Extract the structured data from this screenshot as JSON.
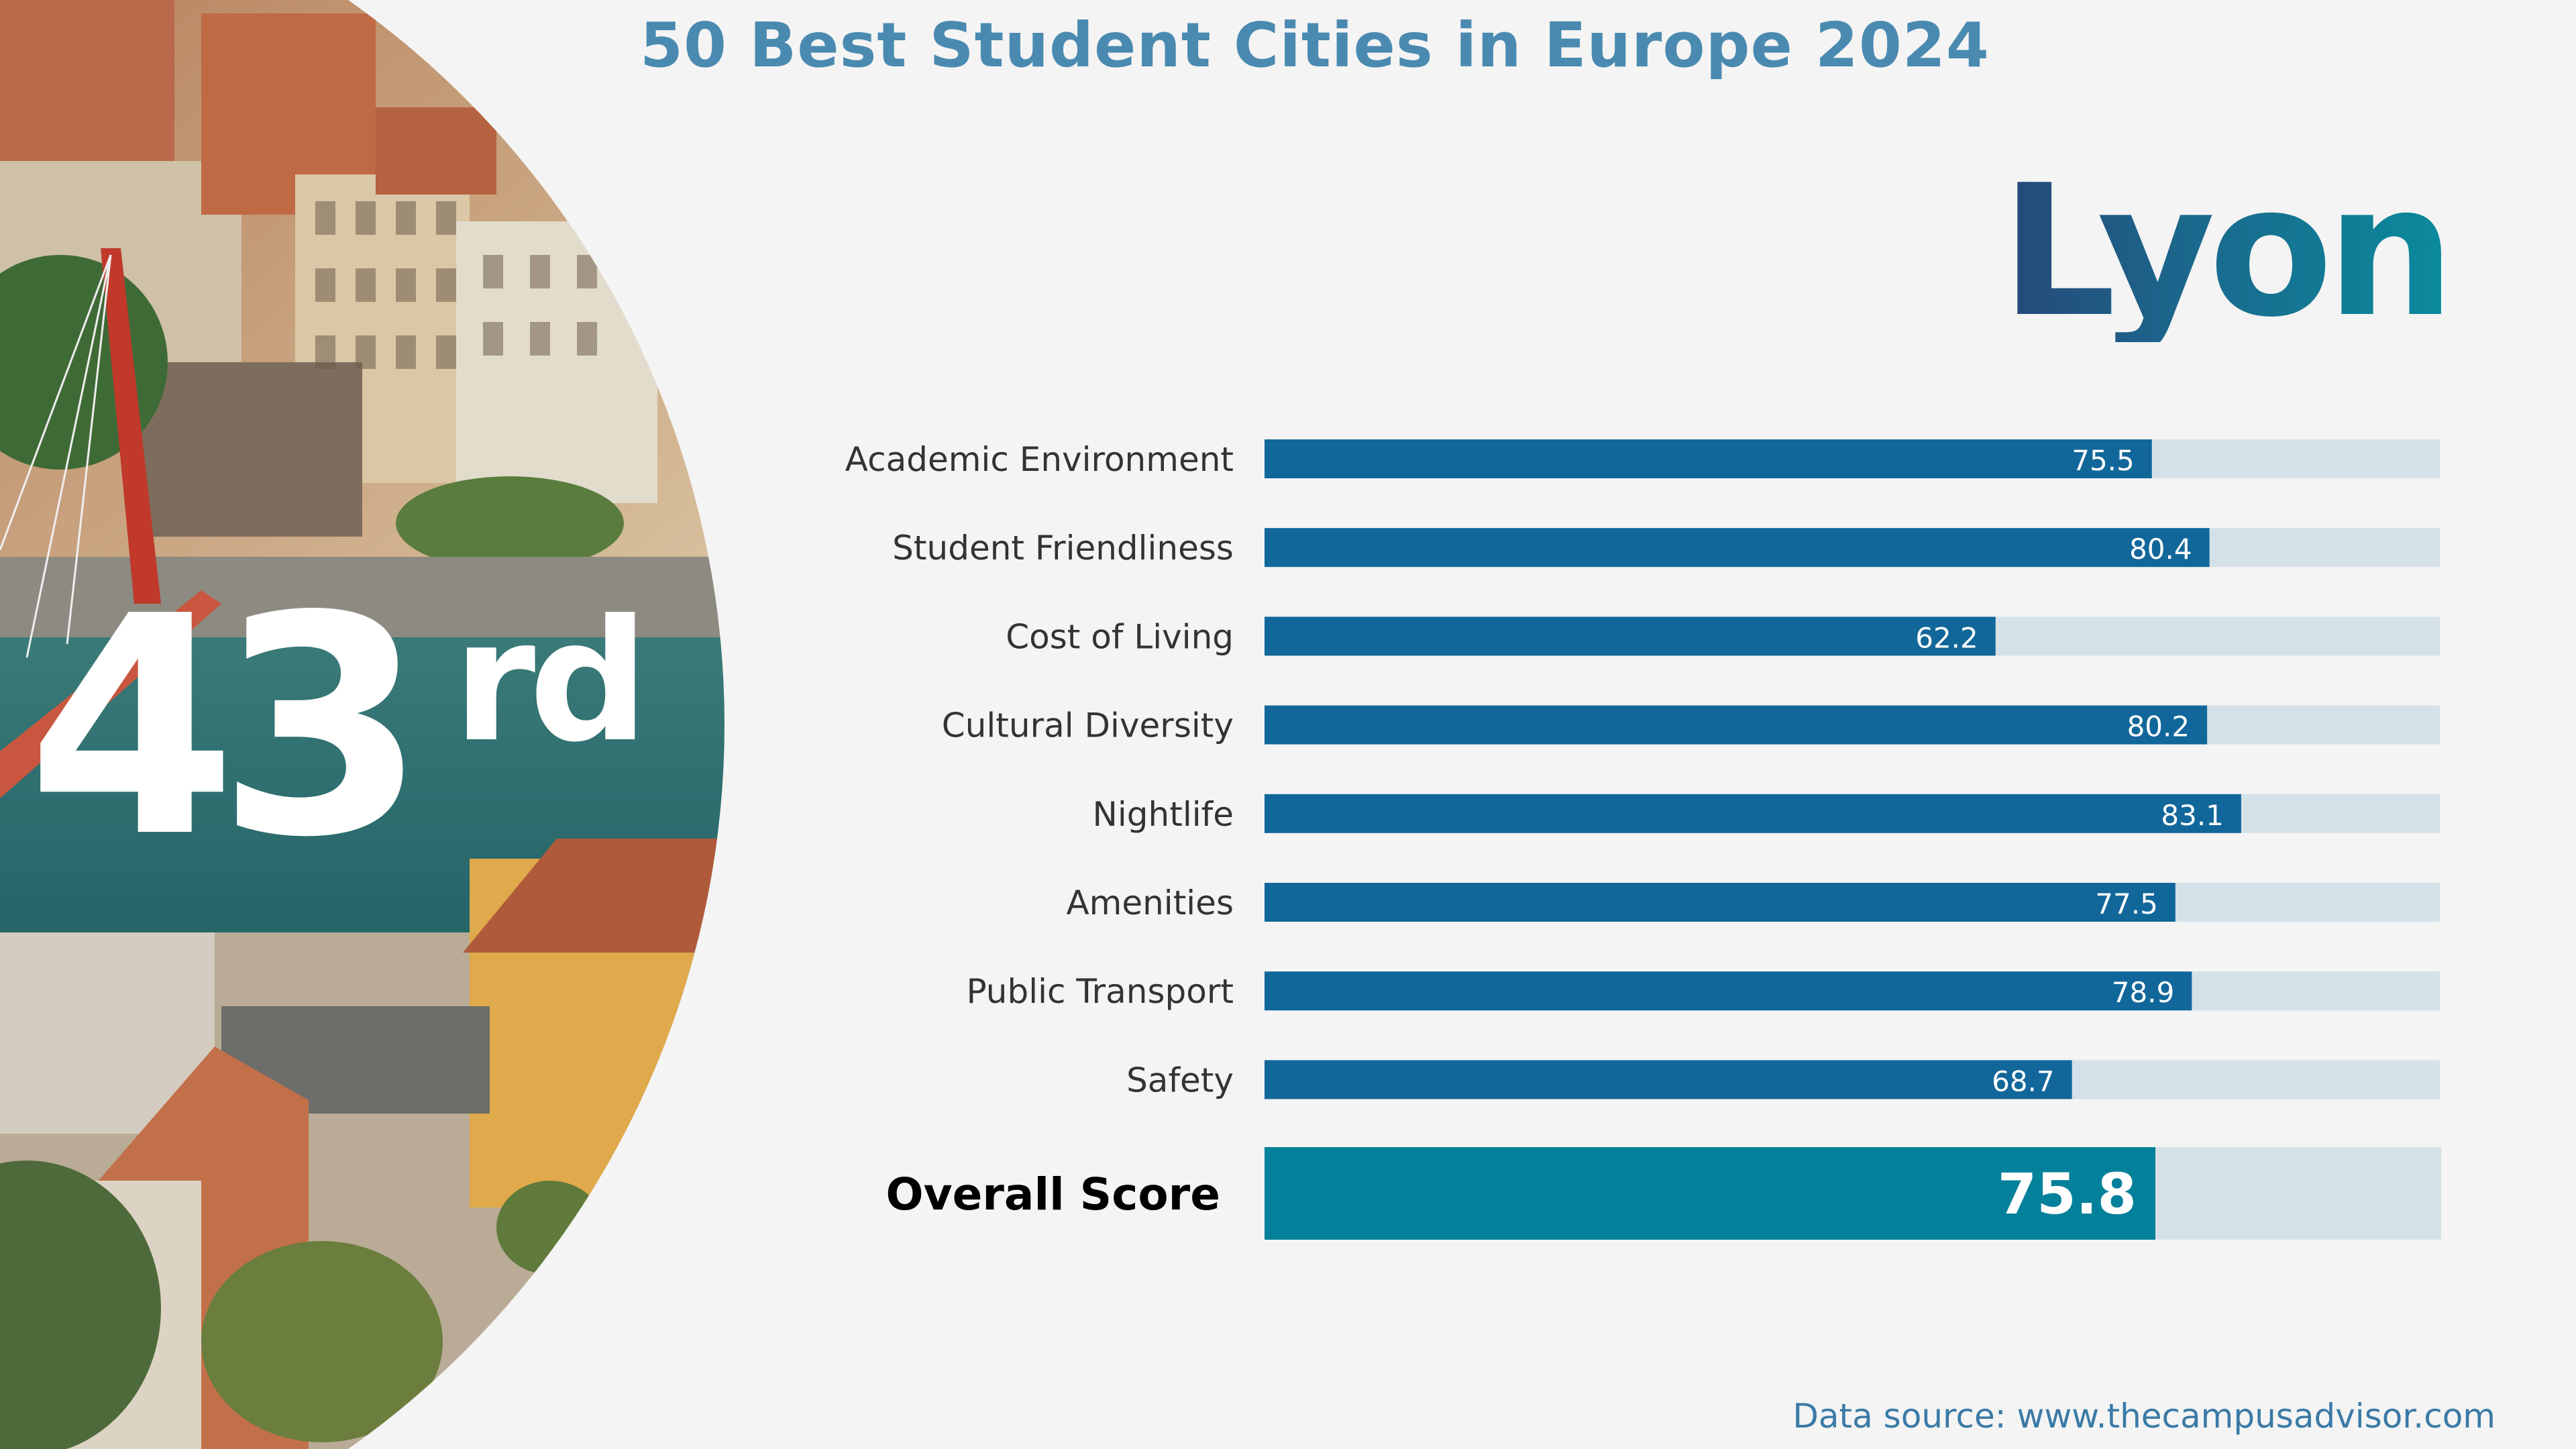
{
  "title": "50 Best Student Cities in Europe 2024",
  "city": "Lyon",
  "rank": {
    "number": "43",
    "suffix": "rd"
  },
  "source": {
    "prefix": "Data source:",
    "url": "www.thecampusadvisor.com"
  },
  "colors": {
    "bar": "#12679a",
    "track": "#d5e1e8",
    "overall_bar": "#03809a",
    "label": "#333333",
    "title": "#4a8ab0"
  },
  "chart_data": {
    "type": "bar",
    "orientation": "horizontal",
    "categories": [
      "Academic Environment",
      "Student Friendliness",
      "Cost of Living",
      "Cultural Diversity",
      "Nightlife",
      "Amenities",
      "Public Transport",
      "Safety"
    ],
    "values": [
      75.5,
      80.4,
      62.2,
      80.2,
      83.1,
      77.5,
      78.9,
      68.7
    ],
    "overall": {
      "label": "Overall Score",
      "value": 75.8
    },
    "xlim": [
      0,
      100
    ],
    "grid": false,
    "legend": false,
    "data_labels": true
  }
}
